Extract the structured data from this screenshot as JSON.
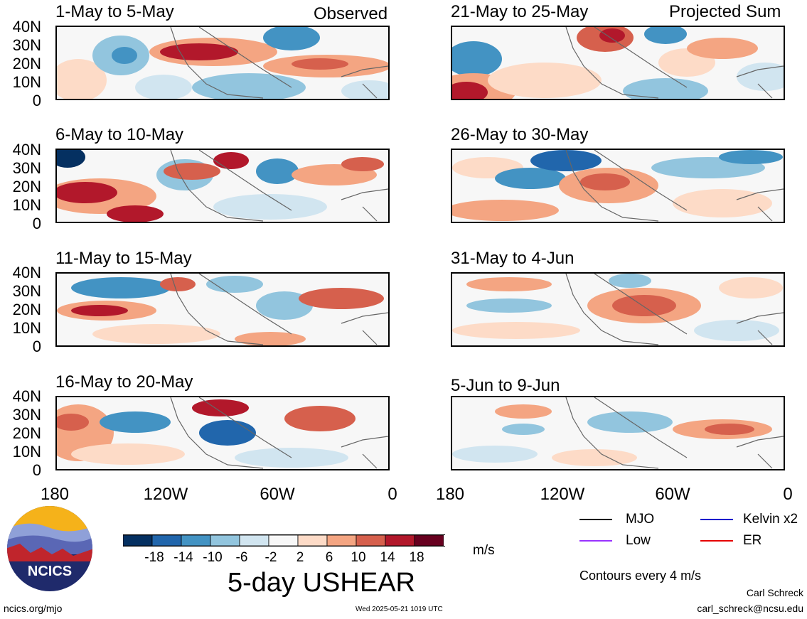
{
  "header": {
    "left": "Observed",
    "right": "Projected Sum"
  },
  "panels": [
    {
      "title": "1-May to 5-May"
    },
    {
      "title": "21-May to 25-May"
    },
    {
      "title": "6-May to 10-May"
    },
    {
      "title": "26-May to 30-May"
    },
    {
      "title": "11-May to 15-May"
    },
    {
      "title": "31-May to 4-Jun"
    },
    {
      "title": "16-May to 20-May"
    },
    {
      "title": "5-Jun to 9-Jun"
    }
  ],
  "lat_labels": [
    "40N",
    "30N",
    "20N",
    "10N",
    "0"
  ],
  "lon_labels": [
    "180",
    "120W",
    "60W",
    "0"
  ],
  "colorbar": {
    "ticks": [
      "-18",
      "-14",
      "-10",
      "-6",
      "-2",
      "2",
      "6",
      "10",
      "14",
      "18"
    ],
    "colors": [
      "#053061",
      "#2166ac",
      "#4393c3",
      "#92c5de",
      "#d1e5f0",
      "#f7f7f7",
      "#fddbc7",
      "#f4a582",
      "#d6604d",
      "#b2182b",
      "#67001f"
    ],
    "units": "m/s"
  },
  "main_title": "5-day USHEAR",
  "legend": {
    "items": [
      {
        "label": "MJO",
        "color": "#000000"
      },
      {
        "label": "Kelvin x2",
        "color": "#0000cc"
      },
      {
        "label": "Low",
        "color": "#9933ff"
      },
      {
        "label": "ER",
        "color": "#e60000"
      }
    ],
    "contours": "Contours every 4 m/s"
  },
  "logo": {
    "text": "NCICS"
  },
  "footer": {
    "url": "ncics.org/mjo",
    "timestamp": "Wed 2025-05-21 1019 UTC",
    "author": "Carl Schreck",
    "email": "carl_schreck@ncsu.edu"
  }
}
